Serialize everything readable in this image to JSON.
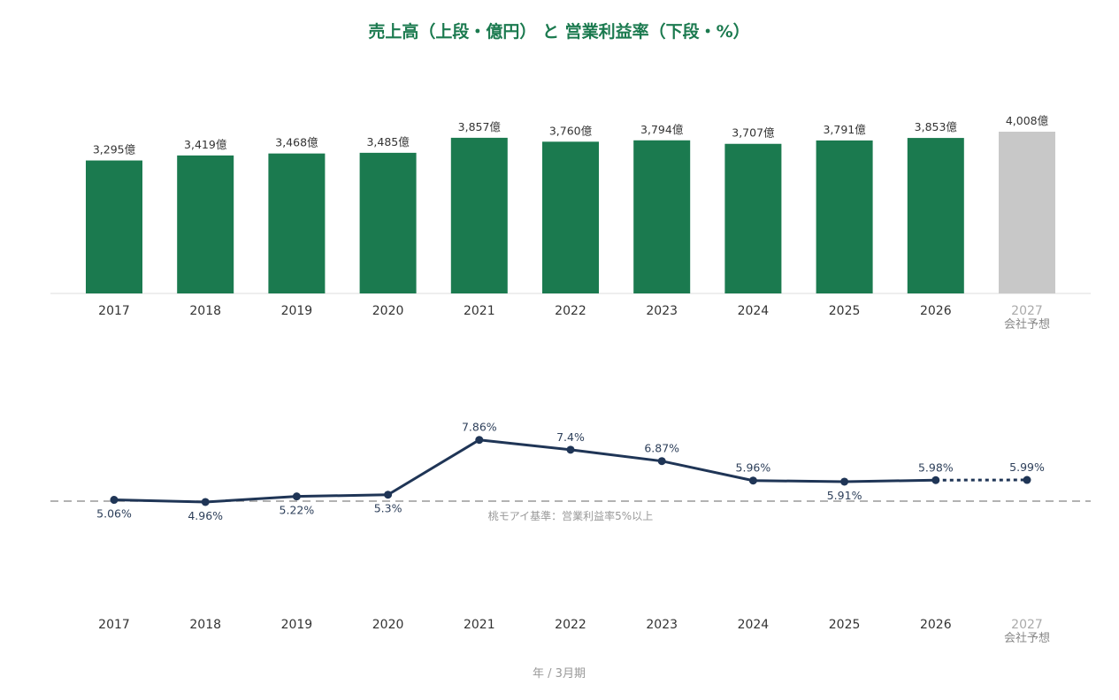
{
  "title": "売上高（上段・億円） と 営業利益率（下段・%）",
  "footer_label": "年 / 3月期",
  "forecast_sublabel": "会社予想",
  "colors": {
    "title": "#1b7a4f",
    "bar": "#1b7a4f",
    "bar_forecast": "#c8c8c8",
    "line": "#1f3556",
    "reference": "#999999",
    "baseline": "#dddddd"
  },
  "chart_data": [
    {
      "type": "bar",
      "title": "売上高（上段・億円）",
      "unit": "億",
      "categories": [
        "2017",
        "2018",
        "2019",
        "2020",
        "2021",
        "2022",
        "2023",
        "2024",
        "2025",
        "2026",
        "2027"
      ],
      "values": [
        3295,
        3419,
        3468,
        3485,
        3857,
        3760,
        3794,
        3707,
        3791,
        3853,
        4008
      ],
      "data_labels": [
        "3,295億",
        "3,419億",
        "3,468億",
        "3,485億",
        "3,857億",
        "3,760億",
        "3,794億",
        "3,707億",
        "3,791億",
        "3,853億",
        "4,008億"
      ],
      "forecast_category": "2027",
      "ylim": [
        0,
        4008
      ]
    },
    {
      "type": "line",
      "title": "営業利益率（下段・%）",
      "categories": [
        "2017",
        "2018",
        "2019",
        "2020",
        "2021",
        "2022",
        "2023",
        "2024",
        "2025",
        "2026",
        "2027"
      ],
      "values": [
        5.06,
        4.96,
        5.22,
        5.3,
        7.86,
        7.4,
        6.87,
        5.96,
        5.91,
        5.98,
        5.99
      ],
      "data_labels": [
        "5.06%",
        "4.96%",
        "5.22%",
        "5.3%",
        "7.86%",
        "7.4%",
        "6.87%",
        "5.96%",
        "5.91%",
        "5.98%",
        "5.99%"
      ],
      "forecast_category": "2027",
      "forecast_style": "dotted",
      "reference_line": {
        "value": 5,
        "label": "桃モアイ基準：営業利益率5%以上",
        "style": "dashed"
      }
    }
  ]
}
